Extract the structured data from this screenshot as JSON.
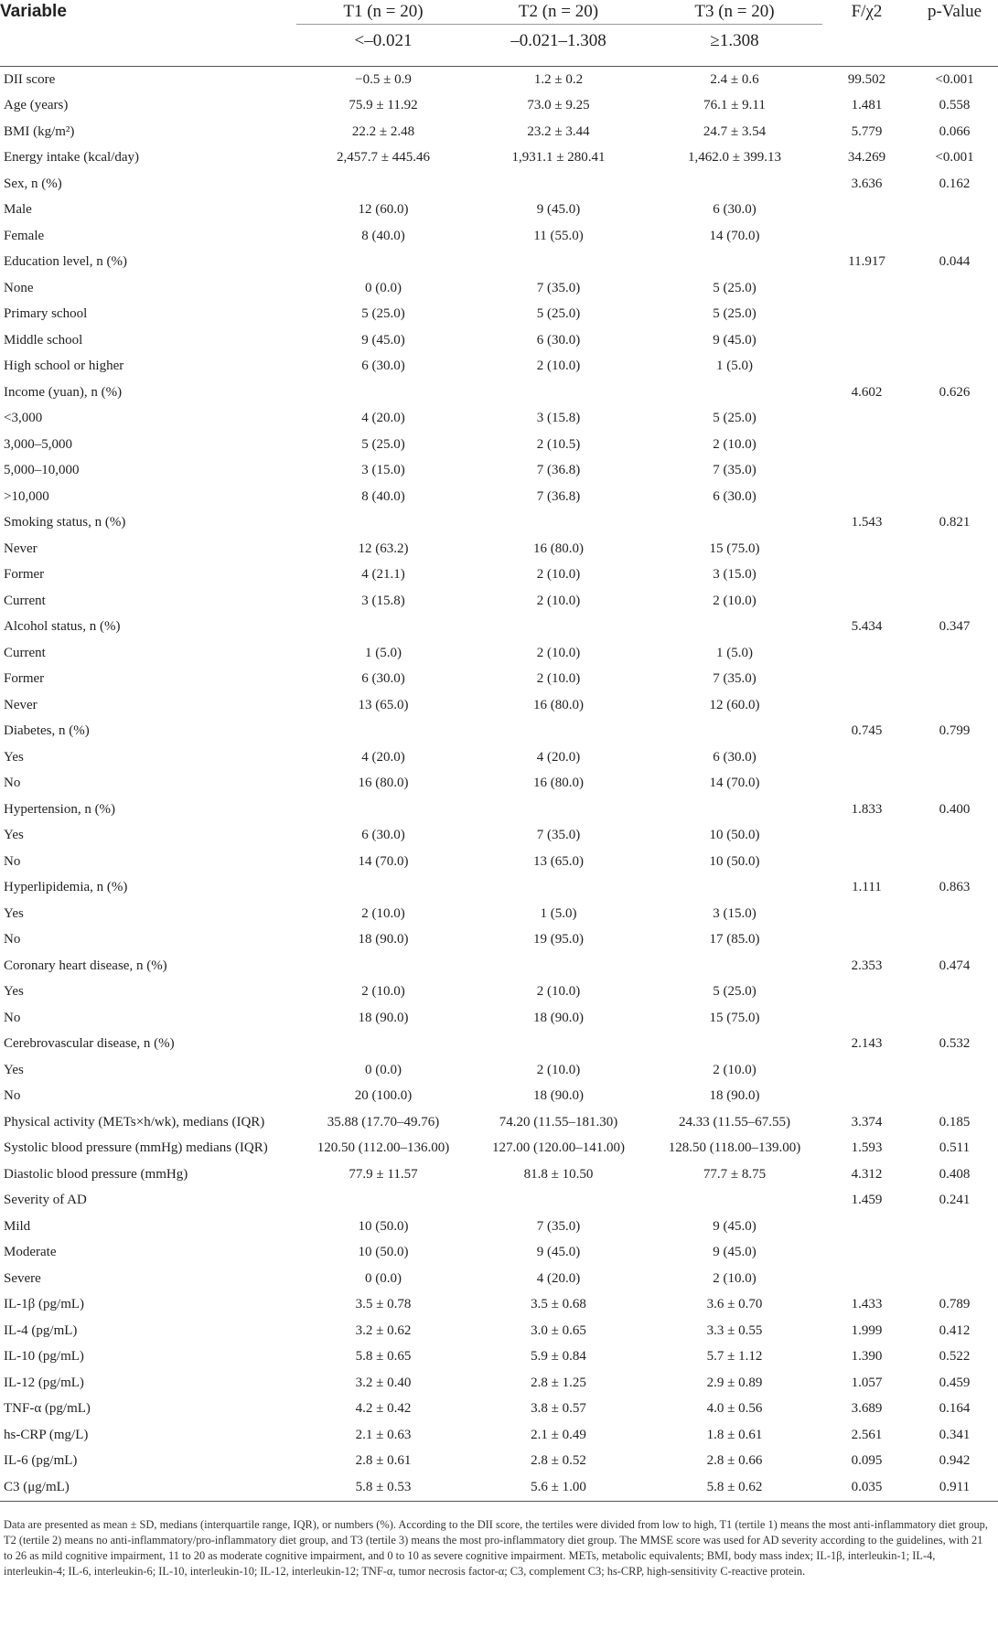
{
  "header": {
    "variable": "Variable",
    "cols": [
      "T1 (n = 20)",
      "T2 (n = 20)",
      "T3 (n = 20)",
      "F/χ2",
      "p-Value"
    ],
    "ranges": [
      "<–0.021",
      "–0.021–1.308",
      "≥1.308"
    ]
  },
  "rows": [
    [
      "DII score",
      "−0.5 ± 0.9",
      "1.2 ± 0.2",
      "2.4 ± 0.6",
      "99.502",
      "<0.001"
    ],
    [
      "Age (years)",
      "75.9 ± 11.92",
      "73.0 ± 9.25",
      "76.1 ± 9.11",
      "1.481",
      "0.558"
    ],
    [
      "BMI (kg/m²)",
      "22.2 ± 2.48",
      "23.2 ± 3.44",
      "24.7 ± 3.54",
      "5.779",
      "0.066"
    ],
    [
      "Energy intake (kcal/day)",
      "2,457.7 ± 445.46",
      "1,931.1 ± 280.41",
      "1,462.0 ± 399.13",
      "34.269",
      "<0.001"
    ],
    [
      "Sex, n (%)",
      "",
      "",
      "",
      "3.636",
      "0.162"
    ],
    [
      "Male",
      "12 (60.0)",
      "9 (45.0)",
      "6 (30.0)",
      "",
      ""
    ],
    [
      "Female",
      "8 (40.0)",
      "11 (55.0)",
      "14 (70.0)",
      "",
      ""
    ],
    [
      "Education level, n (%)",
      "",
      "",
      "",
      "11.917",
      "0.044"
    ],
    [
      "None",
      "0 (0.0)",
      "7 (35.0)",
      "5 (25.0)",
      "",
      ""
    ],
    [
      "Primary school",
      "5 (25.0)",
      "5 (25.0)",
      "5 (25.0)",
      "",
      ""
    ],
    [
      "Middle school",
      "9 (45.0)",
      "6 (30.0)",
      "9 (45.0)",
      "",
      ""
    ],
    [
      "High school or higher",
      "6 (30.0)",
      "2 (10.0)",
      "1 (5.0)",
      "",
      ""
    ],
    [
      "Income (yuan), n (%)",
      "",
      "",
      "",
      "4.602",
      "0.626"
    ],
    [
      "<3,000",
      "4 (20.0)",
      "3 (15.8)",
      "5 (25.0)",
      "",
      ""
    ],
    [
      "3,000–5,000",
      "5 (25.0)",
      "2 (10.5)",
      "2 (10.0)",
      "",
      ""
    ],
    [
      "5,000–10,000",
      "3 (15.0)",
      "7 (36.8)",
      "7 (35.0)",
      "",
      ""
    ],
    [
      ">10,000",
      "8 (40.0)",
      "7 (36.8)",
      "6 (30.0)",
      "",
      ""
    ],
    [
      "Smoking status, n (%)",
      "",
      "",
      "",
      "1.543",
      "0.821"
    ],
    [
      "Never",
      "12 (63.2)",
      "16 (80.0)",
      "15 (75.0)",
      "",
      ""
    ],
    [
      "Former",
      "4 (21.1)",
      "2 (10.0)",
      "3 (15.0)",
      "",
      ""
    ],
    [
      "Current",
      "3 (15.8)",
      "2 (10.0)",
      "2 (10.0)",
      "",
      ""
    ],
    [
      "Alcohol status, n (%)",
      "",
      "",
      "",
      "5.434",
      "0.347"
    ],
    [
      "Current",
      "1 (5.0)",
      "2 (10.0)",
      "1 (5.0)",
      "",
      ""
    ],
    [
      "Former",
      "6 (30.0)",
      "2 (10.0)",
      "7 (35.0)",
      "",
      ""
    ],
    [
      "Never",
      "13 (65.0)",
      "16 (80.0)",
      "12 (60.0)",
      "",
      ""
    ],
    [
      "Diabetes, n (%)",
      "",
      "",
      "",
      "0.745",
      "0.799"
    ],
    [
      "Yes",
      "4 (20.0)",
      "4 (20.0)",
      "6 (30.0)",
      "",
      ""
    ],
    [
      "No",
      "16 (80.0)",
      "16 (80.0)",
      "14 (70.0)",
      "",
      ""
    ],
    [
      "Hypertension, n (%)",
      "",
      "",
      "",
      "1.833",
      "0.400"
    ],
    [
      "Yes",
      "6 (30.0)",
      "7 (35.0)",
      "10 (50.0)",
      "",
      ""
    ],
    [
      "No",
      "14 (70.0)",
      "13 (65.0)",
      "10 (50.0)",
      "",
      ""
    ],
    [
      "Hyperlipidemia, n (%)",
      "",
      "",
      "",
      "1.111",
      "0.863"
    ],
    [
      "Yes",
      "2 (10.0)",
      "1 (5.0)",
      "3 (15.0)",
      "",
      ""
    ],
    [
      "No",
      "18 (90.0)",
      "19 (95.0)",
      "17 (85.0)",
      "",
      ""
    ],
    [
      "Coronary heart disease, n (%)",
      "",
      "",
      "",
      "2.353",
      "0.474"
    ],
    [
      "Yes",
      "2 (10.0)",
      "2 (10.0)",
      "5 (25.0)",
      "",
      ""
    ],
    [
      "No",
      "18 (90.0)",
      "18 (90.0)",
      "15 (75.0)",
      "",
      ""
    ],
    [
      "Cerebrovascular disease, n (%)",
      "",
      "",
      "",
      "2.143",
      "0.532"
    ],
    [
      "Yes",
      "0 (0.0)",
      "2 (10.0)",
      "2 (10.0)",
      "",
      ""
    ],
    [
      "No",
      "20 (100.0)",
      "18 (90.0)",
      "18 (90.0)",
      "",
      ""
    ],
    [
      "Physical activity (METs×h/wk), medians (IQR)",
      "35.88 (17.70–49.76)",
      "74.20 (11.55–181.30)",
      "24.33 (11.55–67.55)",
      "3.374",
      "0.185"
    ],
    [
      "Systolic blood pressure (mmHg) medians (IQR)",
      "120.50 (112.00–136.00)",
      "127.00 (120.00–141.00)",
      "128.50 (118.00–139.00)",
      "1.593",
      "0.511"
    ],
    [
      "Diastolic blood pressure (mmHg)",
      "77.9 ± 11.57",
      "81.8 ± 10.50",
      "77.7 ± 8.75",
      "4.312",
      "0.408"
    ],
    [
      "Severity of AD",
      "",
      "",
      "",
      "1.459",
      "0.241"
    ],
    [
      "Mild",
      "10 (50.0)",
      "7 (35.0)",
      "9 (45.0)",
      "",
      ""
    ],
    [
      "Moderate",
      "10 (50.0)",
      "9 (45.0)",
      "9 (45.0)",
      "",
      ""
    ],
    [
      "Severe",
      "0 (0.0)",
      "4 (20.0)",
      "2 (10.0)",
      "",
      ""
    ],
    [
      "IL-1β (pg/mL)",
      "3.5 ± 0.78",
      "3.5 ± 0.68",
      "3.6 ± 0.70",
      "1.433",
      "0.789"
    ],
    [
      "IL-4 (pg/mL)",
      "3.2 ± 0.62",
      "3.0 ± 0.65",
      "3.3 ± 0.55",
      "1.999",
      "0.412"
    ],
    [
      "IL-10 (pg/mL)",
      "5.8 ± 0.65",
      "5.9 ± 0.84",
      "5.7 ± 1.12",
      "1.390",
      "0.522"
    ],
    [
      "IL-12 (pg/mL)",
      "3.2 ± 0.40",
      "2.8 ± 1.25",
      "2.9 ± 0.89",
      "1.057",
      "0.459"
    ],
    [
      "TNF-α (pg/mL)",
      "4.2 ± 0.42",
      "3.8 ± 0.57",
      "4.0 ± 0.56",
      "3.689",
      "0.164"
    ],
    [
      "hs-CRP (mg/L)",
      "2.1 ± 0.63",
      "2.1 ± 0.49",
      "1.8 ± 0.61",
      "2.561",
      "0.341"
    ],
    [
      "IL-6 (pg/mL)",
      "2.8 ± 0.61",
      "2.8 ± 0.52",
      "2.8 ± 0.66",
      "0.095",
      "0.942"
    ],
    [
      "C3 (μg/mL)",
      "5.8 ± 0.53",
      "5.6 ± 1.00",
      "5.8 ± 0.62",
      "0.035",
      "0.911"
    ]
  ],
  "footnote": "Data are presented as mean ± SD, medians (interquartile range, IQR), or numbers (%). According to the DII score, the tertiles were divided from low to high, T1 (tertile 1) means the most anti-inflammatory diet group, T2 (tertile 2) means no anti-inflammatory/pro-inflammatory diet group, and T3 (tertile 3) means the most pro-inflammatory diet group. The MMSE score was used for AD severity according to the guidelines, with 21 to 26 as mild cognitive impairment, 11 to 20 as moderate cognitive impairment, and 0 to 10 as severe cognitive impairment. METs, metabolic equivalents; BMI, body mass index; IL-1β, interleukin-1; IL-4, interleukin-4; IL-6, interleukin-6; IL-10, interleukin-10; IL-12, interleukin-12; TNF-α, tumor necrosis factor-α; C3, complement C3; hs-CRP, high-sensitivity C-reactive protein."
}
